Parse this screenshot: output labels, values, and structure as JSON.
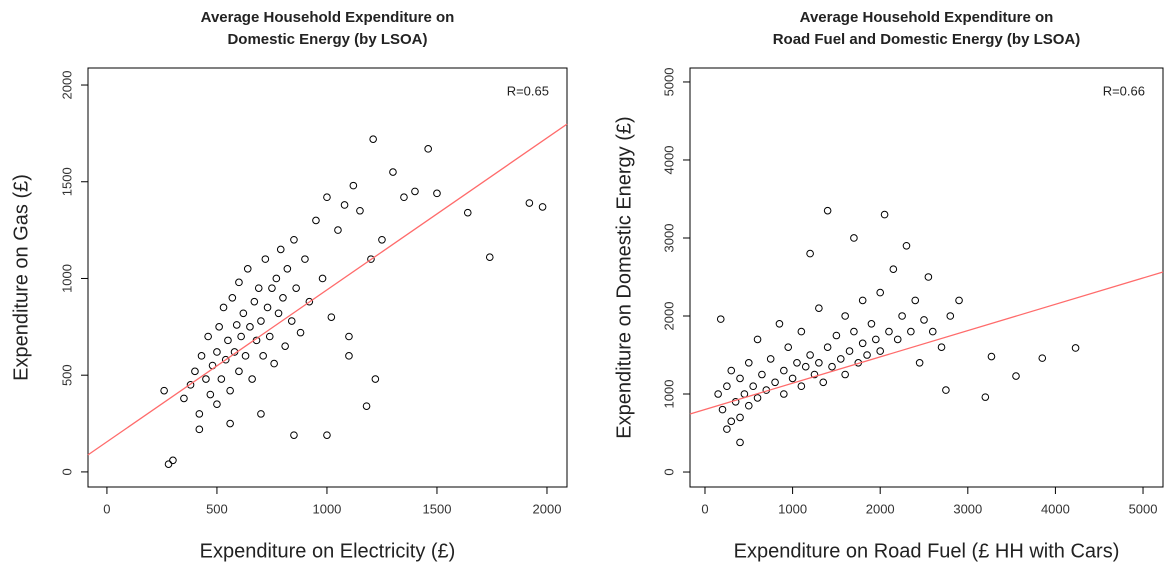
{
  "chart_data": [
    {
      "type": "scatter",
      "title": [
        "Average Household Expenditure on",
        "Domestic Energy (by LSOA)"
      ],
      "xlabel": "Expenditure on Electricity (£)",
      "ylabel": "Expenditure on Gas (£)",
      "annotation": "R=0.65",
      "xlim": [
        -86,
        2091
      ],
      "ylim": [
        -78,
        2088
      ],
      "xticks": [
        0,
        500,
        1000,
        1500,
        2000
      ],
      "yticks": [
        0,
        500,
        1000,
        1500,
        2000
      ],
      "series": [
        {
          "color": "#000000",
          "x": [
            350,
            380,
            400,
            420,
            430,
            450,
            460,
            470,
            480,
            500,
            500,
            510,
            520,
            530,
            540,
            550,
            560,
            570,
            580,
            590,
            600,
            600,
            610,
            620,
            630,
            640,
            650,
            660,
            670,
            680,
            690,
            700,
            710,
            720,
            730,
            740,
            750,
            760,
            770,
            780,
            790,
            800,
            810,
            820,
            840,
            850,
            860,
            880,
            900,
            920,
            950,
            980,
            1000,
            1020,
            1050,
            1080,
            1100,
            1120,
            1150,
            1200,
            1250,
            1350,
            1400,
            1500,
            1210,
            1460,
            1300,
            1640,
            1740,
            1920,
            1980,
            260,
            280,
            300,
            1000,
            1180,
            850,
            1220,
            420,
            560,
            700,
            1100
          ],
          "y": [
            380,
            450,
            520,
            300,
            600,
            480,
            700,
            400,
            550,
            620,
            350,
            750,
            480,
            850,
            580,
            680,
            420,
            900,
            620,
            760,
            520,
            980,
            700,
            820,
            600,
            1050,
            750,
            480,
            880,
            680,
            950,
            780,
            600,
            1100,
            850,
            700,
            950,
            560,
            1000,
            820,
            1150,
            900,
            650,
            1050,
            780,
            1200,
            950,
            720,
            1100,
            880,
            1300,
            1000,
            1420,
            800,
            1250,
            1380,
            700,
            1480,
            1350,
            1100,
            1200,
            1420,
            1450,
            1440,
            1720,
            1670,
            1550,
            1340,
            1110,
            1390,
            1370,
            420,
            40,
            60,
            190,
            340,
            190,
            480,
            220,
            250,
            300,
            600
          ]
        }
      ],
      "trend_line": {
        "color": "#ff6b6b",
        "x": [
          -86,
          2091
        ],
        "y": [
          88,
          1798
        ]
      }
    },
    {
      "type": "scatter",
      "title": [
        "Average Household Expenditure on",
        "Road Fuel and Domestic Energy (by LSOA)"
      ],
      "xlabel": "Expenditure on Road Fuel (£ HH with Cars)",
      "ylabel": "Expenditure on Domestic Energy (£)",
      "annotation": "R=0.66",
      "xlim": [
        -171,
        5228
      ],
      "ylim": [
        -192,
        5179
      ],
      "xticks": [
        0,
        1000,
        2000,
        3000,
        4000,
        5000
      ],
      "yticks": [
        0,
        1000,
        2000,
        3000,
        4000,
        5000
      ],
      "series": [
        {
          "color": "#000000",
          "x": [
            150,
            180,
            200,
            250,
            300,
            300,
            350,
            400,
            400,
            450,
            500,
            500,
            550,
            600,
            600,
            650,
            700,
            750,
            800,
            850,
            900,
            900,
            950,
            1000,
            1050,
            1100,
            1100,
            1150,
            1200,
            1250,
            1300,
            1300,
            1350,
            1400,
            1400,
            1450,
            1500,
            1550,
            1600,
            1600,
            1650,
            1700,
            1700,
            1750,
            1800,
            1800,
            1850,
            1900,
            1950,
            2000,
            2000,
            2050,
            2100,
            2150,
            2200,
            2250,
            2300,
            2350,
            2400,
            2450,
            2500,
            2550,
            2600,
            2700,
            2800,
            2900,
            2750,
            3200,
            3270,
            3550,
            3850,
            4230,
            400,
            250,
            1200
          ],
          "y": [
            1000,
            1960,
            800,
            1100,
            650,
            1300,
            900,
            1200,
            700,
            1000,
            1400,
            850,
            1100,
            1700,
            950,
            1250,
            1050,
            1450,
            1150,
            1900,
            1300,
            1000,
            1600,
            1200,
            1400,
            1800,
            1100,
            1350,
            1500,
            1250,
            2100,
            1400,
            1150,
            1600,
            3350,
            1350,
            1750,
            1450,
            2000,
            1250,
            1550,
            1800,
            3000,
            1400,
            2200,
            1650,
            1500,
            1900,
            1700,
            2300,
            1550,
            3300,
            1800,
            2600,
            1700,
            2000,
            2900,
            1800,
            2200,
            1400,
            1950,
            2500,
            1800,
            1600,
            2000,
            2200,
            1050,
            960,
            1480,
            1230,
            1460,
            1590,
            380,
            550,
            2800
          ]
        }
      ],
      "trend_line": {
        "color": "#ff6b6b",
        "x": [
          -171,
          5228
        ],
        "y": [
          744,
          2564
        ]
      }
    }
  ]
}
